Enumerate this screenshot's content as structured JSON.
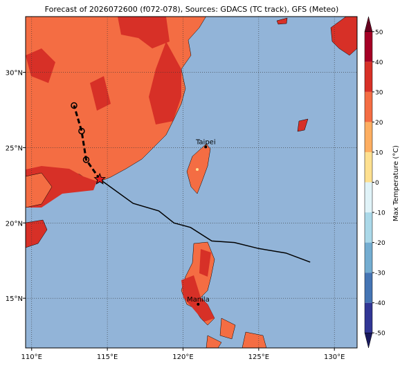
{
  "chart_data": {
    "type": "map",
    "title": "Forecast of 2026072600 (f072-078), Sources: GDACS (TC track), GFS (Meteo)",
    "xlim": [
      109.6,
      131.5
    ],
    "ylim": [
      11.7,
      33.7
    ],
    "xticks": [
      {
        "value": 110,
        "label": "110°E"
      },
      {
        "value": 115,
        "label": "115°E"
      },
      {
        "value": 120,
        "label": "120°E"
      },
      {
        "value": 125,
        "label": "125°E"
      },
      {
        "value": 130,
        "label": "130°E"
      }
    ],
    "yticks": [
      {
        "value": 15,
        "label": "15°N"
      },
      {
        "value": 20,
        "label": "20°N"
      },
      {
        "value": 25,
        "label": "25°N"
      },
      {
        "value": 30,
        "label": "30°N"
      }
    ],
    "grid": true,
    "track": {
      "x": [
        114.5,
        116.7,
        118.4,
        119.4,
        120.5,
        121.9,
        123.4,
        125.0,
        126.8,
        128.4
      ],
      "y": [
        22.9,
        21.3,
        20.8,
        20.0,
        19.7,
        18.8,
        18.7,
        18.3,
        18.0,
        17.4
      ]
    },
    "forecast": {
      "x": [
        114.5,
        113.6,
        113.3,
        112.8
      ],
      "y": [
        22.9,
        24.2,
        26.1,
        27.8
      ]
    },
    "cities": [
      {
        "name": "Taipei",
        "x": 121.5,
        "y": 25.05
      },
      {
        "name": "Manila",
        "x": 121.0,
        "y": 14.6
      }
    ],
    "colorbar": {
      "label": "Max Temperature (°C)",
      "lim": [
        -55,
        55
      ],
      "ticks": [
        50,
        40,
        30,
        20,
        10,
        0,
        -10,
        -20,
        -30,
        -40,
        -50
      ],
      "colors": [
        "#313695",
        "#4575b4",
        "#74add1",
        "#abd9e9",
        "#e0f3f8",
        "#fee090",
        "#fdae61",
        "#f46d43",
        "#d73027",
        "#a50026"
      ]
    }
  }
}
